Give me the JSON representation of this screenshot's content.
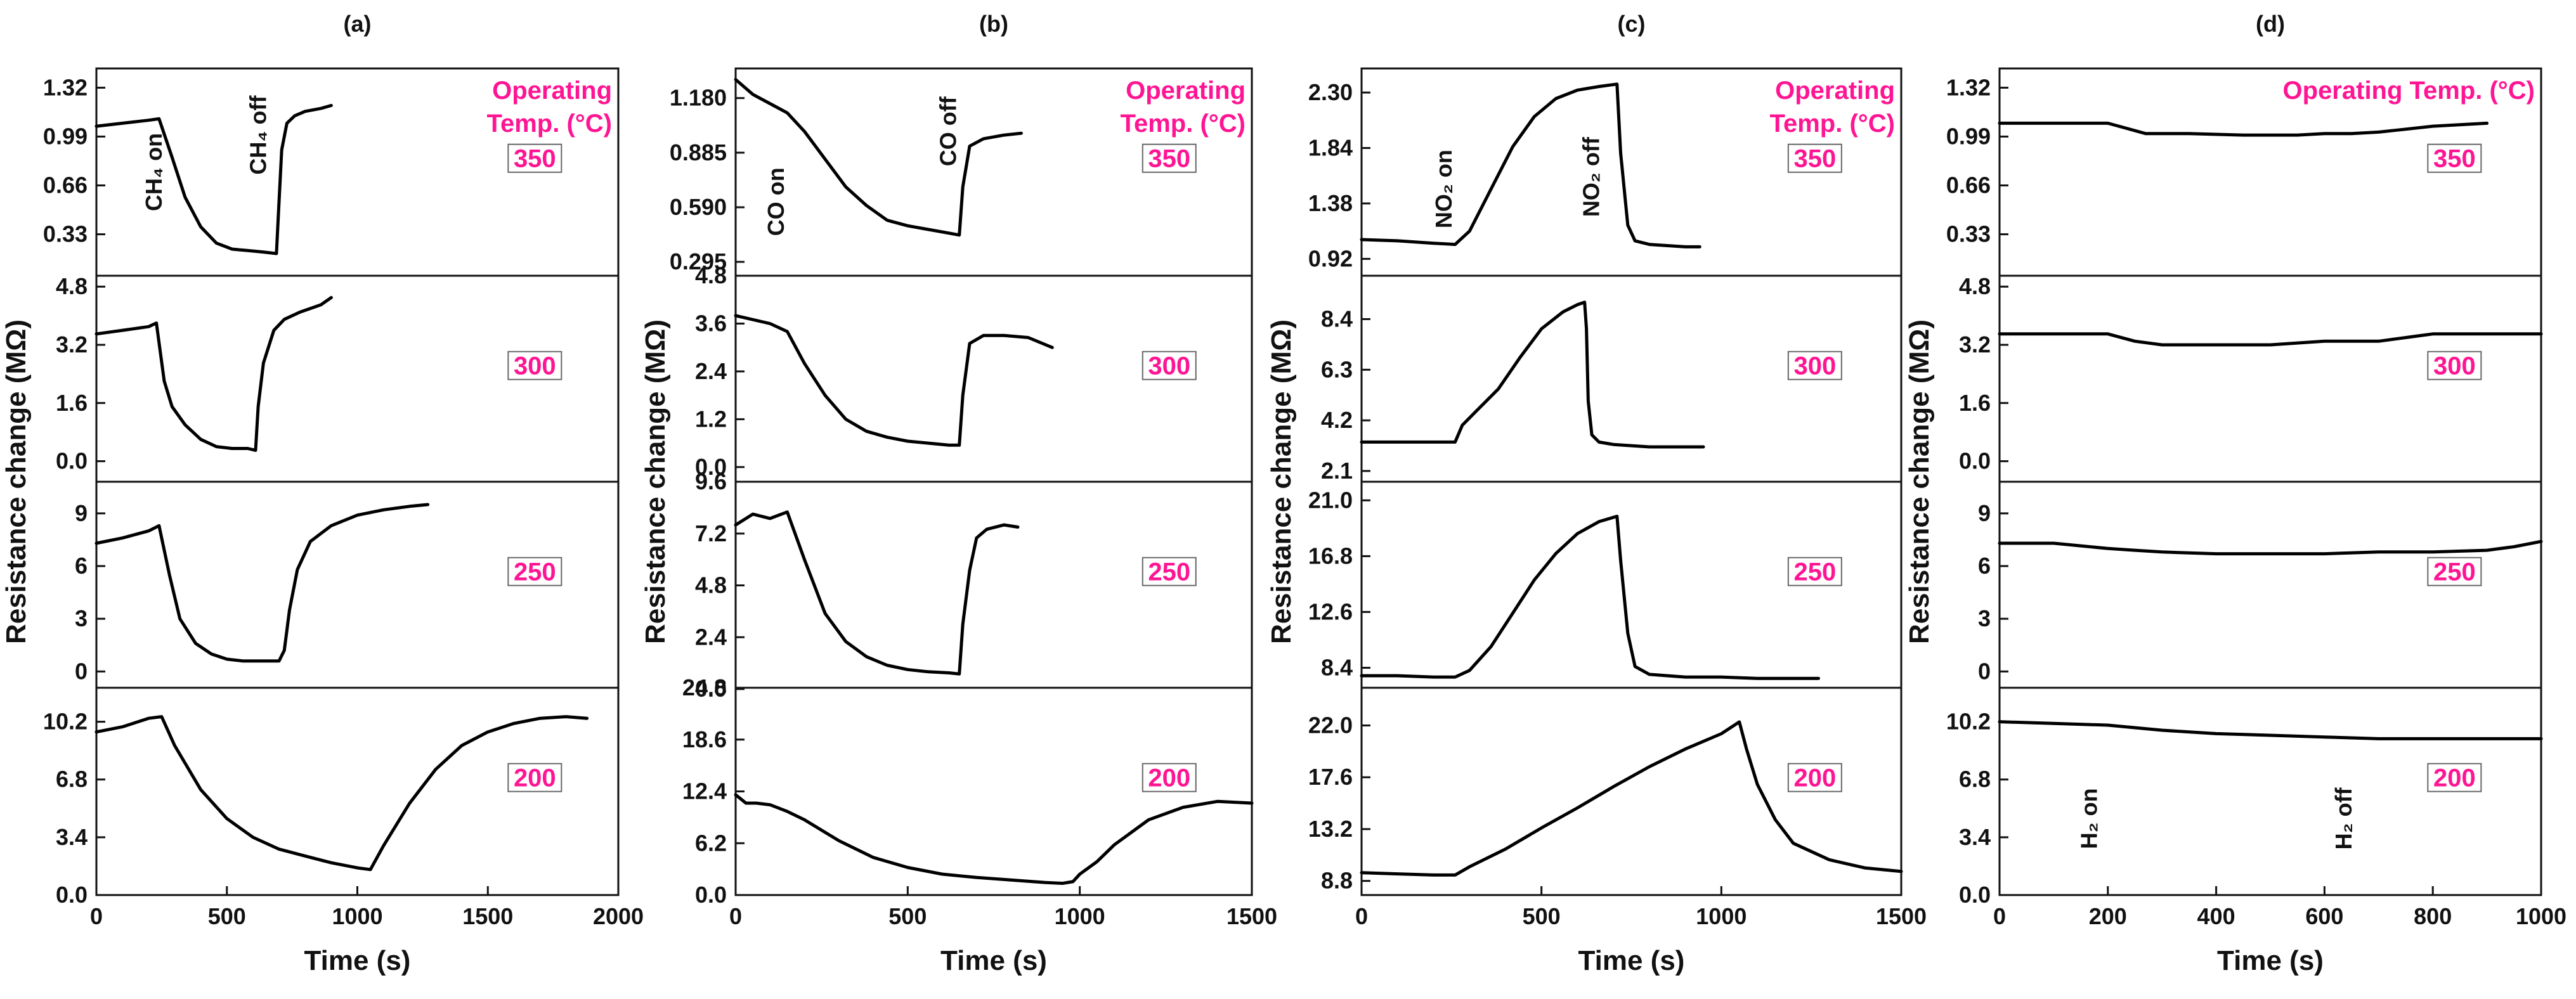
{
  "chart_data": [
    {
      "type": "line",
      "panel": "(a)",
      "xlabel": "Time (s)",
      "ylabel": "Resistance change (MΩ)",
      "xlim": [
        0,
        2000
      ],
      "xticks": [
        "0",
        "500",
        "1000",
        "1500",
        "2000"
      ],
      "op_label": [
        "Operating",
        "Temp. (°C)"
      ],
      "subplots": [
        {
          "temp": "350",
          "ylim": [
            0.05,
            1.45
          ],
          "yticks": [
            "0.33",
            "0.66",
            "0.99",
            "1.32"
          ],
          "annotations": [
            {
              "text": "CH₄ on",
              "x": 250,
              "y": 0.75
            },
            {
              "text": "CH₄ off",
              "x": 650,
              "y": 1.0
            }
          ],
          "x": [
            0,
            100,
            200,
            240,
            290,
            340,
            400,
            460,
            520,
            580,
            640,
            690,
            700,
            710,
            730,
            760,
            800,
            860,
            900
          ],
          "y": [
            1.06,
            1.08,
            1.1,
            1.11,
            0.85,
            0.58,
            0.38,
            0.27,
            0.23,
            0.22,
            0.21,
            0.2,
            0.55,
            0.9,
            1.08,
            1.13,
            1.16,
            1.18,
            1.2
          ]
        },
        {
          "temp": "300",
          "ylim": [
            -0.6,
            5.1
          ],
          "yticks": [
            "0.0",
            "1.6",
            "3.2",
            "4.8"
          ],
          "x": [
            0,
            100,
            200,
            230,
            260,
            290,
            340,
            400,
            460,
            520,
            580,
            610,
            620,
            640,
            680,
            720,
            780,
            860,
            900
          ],
          "y": [
            3.5,
            3.6,
            3.7,
            3.8,
            2.2,
            1.5,
            1.0,
            0.6,
            0.4,
            0.35,
            0.35,
            0.3,
            1.5,
            2.7,
            3.6,
            3.9,
            4.1,
            4.3,
            4.5
          ]
        },
        {
          "temp": "250",
          "ylim": [
            -1.0,
            10.8
          ],
          "yticks": [
            "0",
            "3",
            "6",
            "9"
          ],
          "x": [
            0,
            100,
            200,
            240,
            280,
            320,
            380,
            440,
            500,
            560,
            620,
            700,
            720,
            740,
            770,
            820,
            900,
            1000,
            1100,
            1200,
            1270
          ],
          "y": [
            7.3,
            7.6,
            8.0,
            8.3,
            5.5,
            3.0,
            1.6,
            1.0,
            0.7,
            0.6,
            0.6,
            0.6,
            1.2,
            3.5,
            5.8,
            7.4,
            8.3,
            8.9,
            9.2,
            9.4,
            9.5
          ]
        },
        {
          "temp": "200",
          "ylim": [
            0.0,
            12.2
          ],
          "yticks": [
            "0.0",
            "3.4",
            "6.8",
            "10.2"
          ],
          "x": [
            0,
            100,
            200,
            250,
            300,
            400,
            500,
            600,
            700,
            800,
            900,
            1000,
            1050,
            1100,
            1200,
            1300,
            1400,
            1500,
            1600,
            1700,
            1800,
            1880
          ],
          "y": [
            9.6,
            9.9,
            10.4,
            10.5,
            8.8,
            6.2,
            4.5,
            3.4,
            2.7,
            2.3,
            1.9,
            1.6,
            1.5,
            2.9,
            5.4,
            7.4,
            8.8,
            9.6,
            10.1,
            10.4,
            10.5,
            10.4
          ]
        }
      ]
    },
    {
      "type": "line",
      "panel": "(b)",
      "xlabel": "Time (s)",
      "ylabel": "Resistance change (MΩ)",
      "xlim": [
        0,
        1500
      ],
      "xticks": [
        "0",
        "500",
        "1000",
        "1500"
      ],
      "op_label": [
        "Operating",
        "Temp. (°C)"
      ],
      "subplots": [
        {
          "temp": "350",
          "ylim": [
            0.22,
            1.34
          ],
          "yticks": [
            "0.295",
            "0.590",
            "0.885",
            "1.180"
          ],
          "annotations": [
            {
              "text": "CO on",
              "x": 140,
              "y": 0.62
            },
            {
              "text": "CO off",
              "x": 640,
              "y": 1.0
            }
          ],
          "x": [
            0,
            50,
            100,
            150,
            200,
            260,
            320,
            380,
            440,
            500,
            560,
            620,
            650,
            660,
            680,
            720,
            780,
            830
          ],
          "y": [
            1.28,
            1.2,
            1.15,
            1.1,
            1.0,
            0.85,
            0.7,
            0.6,
            0.52,
            0.49,
            0.47,
            0.45,
            0.44,
            0.7,
            0.92,
            0.96,
            0.98,
            0.99
          ]
        },
        {
          "temp": "300",
          "ylim": [
            -0.4,
            4.8
          ],
          "yticks": [
            "0.0",
            "1.2",
            "2.4",
            "3.6",
            "4.8"
          ],
          "x": [
            0,
            100,
            150,
            200,
            260,
            320,
            380,
            440,
            500,
            560,
            620,
            650,
            660,
            680,
            720,
            780,
            850,
            920
          ],
          "y": [
            3.8,
            3.6,
            3.4,
            2.6,
            1.8,
            1.2,
            0.9,
            0.75,
            0.65,
            0.6,
            0.55,
            0.55,
            1.8,
            3.1,
            3.3,
            3.3,
            3.25,
            3.0
          ]
        },
        {
          "temp": "250",
          "ylim": [
            0.0,
            9.6
          ],
          "yticks": [
            "0.0",
            "2.4",
            "4.8",
            "7.2",
            "9.6"
          ],
          "x": [
            0,
            50,
            100,
            150,
            200,
            260,
            320,
            380,
            440,
            500,
            560,
            620,
            650,
            660,
            680,
            700,
            730,
            780,
            820
          ],
          "y": [
            7.6,
            8.1,
            7.9,
            8.2,
            6.0,
            3.5,
            2.2,
            1.5,
            1.1,
            0.9,
            0.8,
            0.75,
            0.7,
            3.0,
            5.5,
            7.0,
            7.4,
            7.6,
            7.5
          ]
        },
        {
          "temp": "200",
          "ylim": [
            0.0,
            24.8
          ],
          "yticks": [
            "0.0",
            "6.2",
            "12.4",
            "18.6",
            "24.8"
          ],
          "x": [
            0,
            30,
            60,
            100,
            150,
            200,
            300,
            400,
            500,
            600,
            700,
            800,
            900,
            950,
            980,
            1000,
            1050,
            1100,
            1200,
            1300,
            1400,
            1500
          ],
          "y": [
            12.0,
            11.0,
            11.0,
            10.8,
            10.0,
            9.0,
            6.5,
            4.5,
            3.3,
            2.5,
            2.1,
            1.8,
            1.5,
            1.4,
            1.6,
            2.5,
            4.0,
            6.0,
            9.0,
            10.5,
            11.2,
            11.0
          ]
        }
      ]
    },
    {
      "type": "line",
      "panel": "(c)",
      "xlabel": "Time (s)",
      "ylabel": "Resistance change (MΩ)",
      "xlim": [
        0,
        1500
      ],
      "xticks": [
        "0",
        "500",
        "1000",
        "1500"
      ],
      "op_label": [
        "Operating",
        "Temp. (°C)"
      ],
      "subplots": [
        {
          "temp": "350",
          "ylim": [
            0.78,
            2.5
          ],
          "yticks": [
            "0.92",
            "1.38",
            "1.84",
            "2.30"
          ],
          "annotations": [
            {
              "text": "NO₂ on",
              "x": 250,
              "y": 1.5
            },
            {
              "text": "NO₂ off",
              "x": 660,
              "y": 1.6
            }
          ],
          "x": [
            0,
            100,
            200,
            260,
            300,
            360,
            420,
            480,
            540,
            600,
            660,
            710,
            720,
            740,
            760,
            800,
            850,
            900,
            940
          ],
          "y": [
            1.08,
            1.07,
            1.05,
            1.04,
            1.15,
            1.5,
            1.85,
            2.1,
            2.25,
            2.32,
            2.35,
            2.37,
            1.8,
            1.2,
            1.07,
            1.04,
            1.03,
            1.02,
            1.02
          ]
        },
        {
          "temp": "300",
          "ylim": [
            1.6,
            10.2
          ],
          "yticks": [
            "2.1",
            "4.2",
            "6.3",
            "8.4"
          ],
          "x": [
            0,
            100,
            200,
            260,
            280,
            320,
            380,
            440,
            500,
            560,
            600,
            620,
            625,
            630,
            640,
            660,
            700,
            800,
            900,
            950
          ],
          "y": [
            3.3,
            3.3,
            3.3,
            3.3,
            4.0,
            4.6,
            5.5,
            6.8,
            8.0,
            8.7,
            9.0,
            9.1,
            8.0,
            5.0,
            3.6,
            3.3,
            3.2,
            3.1,
            3.1,
            3.1
          ]
        },
        {
          "temp": "250",
          "ylim": [
            6.8,
            22.4
          ],
          "yticks": [
            "8.4",
            "12.6",
            "16.8",
            "21.0"
          ],
          "x": [
            0,
            100,
            200,
            260,
            300,
            360,
            420,
            480,
            540,
            600,
            660,
            710,
            720,
            740,
            760,
            800,
            900,
            1000,
            1100,
            1200,
            1270
          ],
          "y": [
            7.8,
            7.8,
            7.7,
            7.7,
            8.2,
            10.0,
            12.5,
            15.0,
            17.0,
            18.5,
            19.4,
            19.8,
            16.5,
            11.0,
            8.5,
            7.9,
            7.7,
            7.7,
            7.6,
            7.6,
            7.6
          ]
        },
        {
          "temp": "200",
          "ylim": [
            7.6,
            25.2
          ],
          "yticks": [
            "8.8",
            "13.2",
            "17.6",
            "22.0"
          ],
          "x": [
            0,
            100,
            200,
            260,
            300,
            400,
            500,
            600,
            700,
            800,
            900,
            1000,
            1050,
            1070,
            1100,
            1150,
            1200,
            1300,
            1400,
            1500
          ],
          "y": [
            9.5,
            9.4,
            9.3,
            9.3,
            10.0,
            11.5,
            13.3,
            15.0,
            16.8,
            18.5,
            20.0,
            21.3,
            22.3,
            20.0,
            17.0,
            14.0,
            12.0,
            10.6,
            9.9,
            9.6
          ]
        }
      ]
    },
    {
      "type": "line",
      "panel": "(d)",
      "xlabel": "Time (s)",
      "ylabel": "Resistance change (MΩ)",
      "xlim": [
        0,
        1000
      ],
      "xticks": [
        "0",
        "200",
        "400",
        "600",
        "800",
        "1000"
      ],
      "op_label": [
        "Operating  Temp. (°C)"
      ],
      "subplots": [
        {
          "temp": "350",
          "ylim": [
            0.05,
            1.45
          ],
          "yticks": [
            "0.33",
            "0.66",
            "0.99",
            "1.32"
          ],
          "x": [
            0,
            100,
            200,
            230,
            270,
            350,
            450,
            550,
            600,
            650,
            700,
            750,
            800,
            850,
            900
          ],
          "y": [
            1.08,
            1.08,
            1.08,
            1.05,
            1.01,
            1.01,
            1.0,
            1.0,
            1.01,
            1.01,
            1.02,
            1.04,
            1.06,
            1.07,
            1.08
          ]
        },
        {
          "temp": "300",
          "ylim": [
            -0.6,
            5.1
          ],
          "yticks": [
            "0.0",
            "1.6",
            "3.2",
            "4.8"
          ],
          "x": [
            0,
            100,
            200,
            250,
            300,
            400,
            500,
            600,
            700,
            800,
            900,
            1000
          ],
          "y": [
            3.5,
            3.5,
            3.5,
            3.3,
            3.2,
            3.2,
            3.2,
            3.3,
            3.3,
            3.5,
            3.5,
            3.5
          ]
        },
        {
          "temp": "250",
          "ylim": [
            -1.0,
            10.8
          ],
          "yticks": [
            "0",
            "3",
            "6",
            "9"
          ],
          "x": [
            0,
            100,
            200,
            250,
            300,
            400,
            500,
            600,
            700,
            800,
            900,
            950,
            1000
          ],
          "y": [
            7.3,
            7.3,
            7.0,
            6.9,
            6.8,
            6.7,
            6.7,
            6.7,
            6.8,
            6.8,
            6.9,
            7.1,
            7.4
          ]
        },
        {
          "temp": "200",
          "ylim": [
            0.0,
            12.2
          ],
          "yticks": [
            "0.0",
            "3.4",
            "6.8",
            "10.2"
          ],
          "annotations": [
            {
              "text": "H₂ on",
              "x": 180,
              "y": 4.5
            },
            {
              "text": "H₂ off",
              "x": 650,
              "y": 4.5
            }
          ],
          "x": [
            0,
            100,
            200,
            300,
            400,
            500,
            600,
            700,
            800,
            900,
            1000
          ],
          "y": [
            10.2,
            10.1,
            10.0,
            9.7,
            9.5,
            9.4,
            9.3,
            9.2,
            9.2,
            9.2,
            9.2
          ]
        }
      ]
    }
  ]
}
